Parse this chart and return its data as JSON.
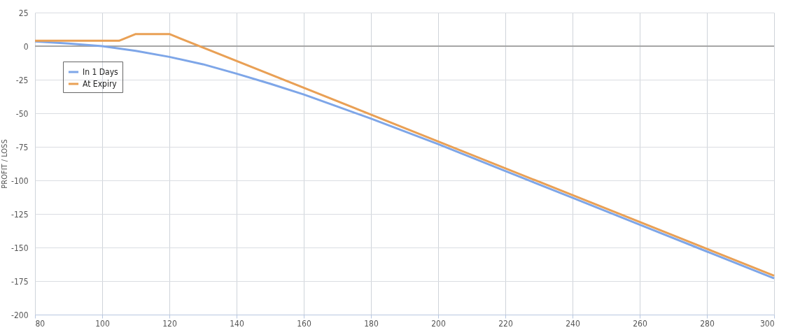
{
  "chart_data": {
    "type": "line",
    "ylabel": "PROFIT / LOSS",
    "xlim": [
      80,
      300
    ],
    "xticks": [
      80,
      100,
      120,
      140,
      160,
      180,
      200,
      220,
      240,
      260,
      280,
      300
    ],
    "ylim": [
      -200,
      25
    ],
    "yticks": [
      -200,
      -175,
      -150,
      -125,
      -100,
      -75,
      -50,
      -25,
      0,
      25
    ],
    "grid": true,
    "legend": "top left",
    "marker": "none",
    "line_style": "solid",
    "ref_lines": [
      {
        "axis": "y",
        "value": 0,
        "color": "#a6a6a6"
      }
    ],
    "series": [
      {
        "name": "In 1 Days",
        "color": "#7ea6e8",
        "x": [
          80,
          90,
          100,
          110,
          120,
          130,
          140,
          150,
          160,
          170,
          180,
          190,
          200,
          220,
          240,
          260,
          280,
          300
        ],
        "values": [
          3.5,
          2,
          0,
          -3.5,
          -8,
          -13.5,
          -20.5,
          -28,
          -36,
          -45,
          -54,
          -63.5,
          -73,
          -93,
          -113,
          -133,
          -153,
          -173
        ]
      },
      {
        "name": "At Expiry",
        "color": "#e9a055",
        "x": [
          80,
          105,
          110,
          120,
          300
        ],
        "values": [
          4,
          4,
          9,
          9,
          -171
        ]
      }
    ]
  }
}
